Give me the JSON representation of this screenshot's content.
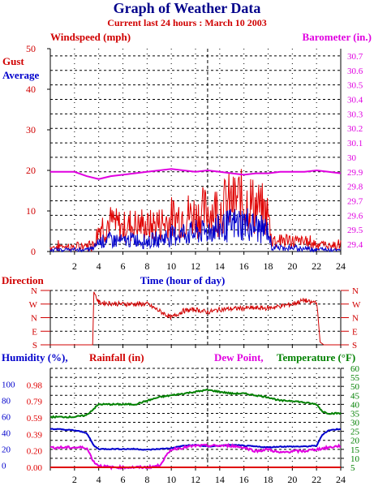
{
  "title": "Graph of Weather Data",
  "subtitle": "Current last 24 hours : March 10 2003",
  "colors": {
    "gust": "#e00000",
    "average": "#0000cc",
    "barometer": "#e000e0",
    "direction": "#d00000",
    "humidity": "#0000cc",
    "rainfall": "#e00000",
    "dewpoint": "#e000e0",
    "temperature": "#008000",
    "grid": "#000000"
  },
  "x_axis": {
    "label": "Time (hour of day)",
    "ticks": [
      "2",
      "4",
      "6",
      "8",
      "10",
      "12",
      "14",
      "16",
      "18",
      "20",
      "22",
      "24"
    ]
  },
  "chart_data": [
    {
      "type": "line",
      "label_left": "Windspeed (mph)",
      "label_right": "Barometer (in.)",
      "legend": [
        "Gust",
        "Average"
      ],
      "ylim_left": [
        0,
        50
      ],
      "yticks_left": [
        "0",
        "10",
        "20",
        "30",
        "40",
        "50"
      ],
      "ylim_right": [
        29.35,
        30.75
      ],
      "yticks_right": [
        "29.4",
        "29.5",
        "29.6",
        "29.7",
        "29.8",
        "29.9",
        "30",
        "30.1",
        "30.2",
        "30.3",
        "30.4",
        "30.5",
        "30.6",
        "30.7"
      ],
      "xlim": [
        0,
        24
      ],
      "series": [
        {
          "name": "Gust",
          "axis": "left",
          "points": [
            [
              0,
              1
            ],
            [
              1,
              1.5
            ],
            [
              2,
              1
            ],
            [
              3,
              1.5
            ],
            [
              3.6,
              2
            ],
            [
              4,
              6
            ],
            [
              5,
              7
            ],
            [
              6,
              6
            ],
            [
              7,
              7
            ],
            [
              8,
              6
            ],
            [
              9,
              7
            ],
            [
              10,
              8
            ],
            [
              11,
              9
            ],
            [
              12,
              9
            ],
            [
              13,
              10
            ],
            [
              14,
              11
            ],
            [
              15,
              12
            ],
            [
              16,
              13
            ],
            [
              17,
              11
            ],
            [
              18,
              9
            ],
            [
              18.3,
              3
            ],
            [
              19,
              3
            ],
            [
              20,
              2.5
            ],
            [
              21,
              2.5
            ],
            [
              22,
              2
            ],
            [
              23,
              1.5
            ],
            [
              24,
              1.5
            ]
          ]
        },
        {
          "name": "Average",
          "axis": "left",
          "points": [
            [
              0,
              0.3
            ],
            [
              1,
              0.5
            ],
            [
              2,
              0.4
            ],
            [
              3,
              0.5
            ],
            [
              3.6,
              0.8
            ],
            [
              4,
              2.5
            ],
            [
              5,
              3
            ],
            [
              6,
              2.5
            ],
            [
              7,
              3
            ],
            [
              8,
              2.5
            ],
            [
              9,
              3
            ],
            [
              10,
              4
            ],
            [
              11,
              4.5
            ],
            [
              12,
              4.5
            ],
            [
              13,
              5
            ],
            [
              14,
              6
            ],
            [
              15,
              6.5
            ],
            [
              16,
              7
            ],
            [
              17,
              6
            ],
            [
              18,
              5
            ],
            [
              18.3,
              1
            ],
            [
              19,
              1
            ],
            [
              20,
              0.8
            ],
            [
              21,
              0.8
            ],
            [
              22,
              0.5
            ],
            [
              23,
              0.5
            ],
            [
              24,
              0.5
            ]
          ]
        },
        {
          "name": "Barometer",
          "axis": "right",
          "points": [
            [
              0,
              29.9
            ],
            [
              2,
              29.9
            ],
            [
              3,
              29.87
            ],
            [
              4,
              29.85
            ],
            [
              5,
              29.87
            ],
            [
              6,
              29.88
            ],
            [
              8,
              29.9
            ],
            [
              9,
              29.91
            ],
            [
              10,
              29.92
            ],
            [
              11,
              29.91
            ],
            [
              12,
              29.9
            ],
            [
              13,
              29.91
            ],
            [
              14,
              29.9
            ],
            [
              15,
              29.89
            ],
            [
              16,
              29.88
            ],
            [
              17,
              29.89
            ],
            [
              18,
              29.89
            ],
            [
              19,
              29.9
            ],
            [
              20,
              29.9
            ],
            [
              21,
              29.9
            ],
            [
              22,
              29.91
            ],
            [
              23,
              29.9
            ],
            [
              24,
              29.89
            ]
          ]
        }
      ]
    },
    {
      "type": "line",
      "label_left": "Direction",
      "yticks_left": [
        "S",
        "E",
        "N",
        "W",
        "N"
      ],
      "yticks_right": [
        "S",
        "E",
        "N",
        "W",
        "N"
      ],
      "ylim": [
        0,
        4
      ],
      "xlim": [
        0,
        24
      ],
      "series": [
        {
          "name": "Direction",
          "points": [
            [
              0,
              0
            ],
            [
              3.5,
              0
            ],
            [
              3.6,
              3.9
            ],
            [
              4,
              3.1
            ],
            [
              6,
              3
            ],
            [
              8,
              3
            ],
            [
              9,
              2.5
            ],
            [
              10,
              2
            ],
            [
              11,
              2.5
            ],
            [
              12,
              2.6
            ],
            [
              13,
              2.4
            ],
            [
              14,
              2.6
            ],
            [
              16,
              2.7
            ],
            [
              18,
              2.7
            ],
            [
              20,
              3
            ],
            [
              21,
              3.3
            ],
            [
              21.5,
              3.1
            ],
            [
              22,
              3.2
            ],
            [
              22.3,
              0.2
            ],
            [
              22.6,
              0
            ],
            [
              24,
              0
            ]
          ]
        }
      ]
    },
    {
      "type": "line",
      "labels": [
        "Humidity (%),",
        "Rainfall (in)",
        "Dew Point,",
        "Temperature (°F)"
      ],
      "ylim_humidity": [
        0,
        100
      ],
      "yticks_humidity": [
        "0",
        "20",
        "40",
        "60",
        "80",
        "100"
      ],
      "ylim_rainfall": [
        0,
        1.18
      ],
      "yticks_rainfall": [
        "0.00",
        "0.20",
        "0.39",
        "0.59",
        "0.79",
        "0.98"
      ],
      "ylim_temperature": [
        5,
        60
      ],
      "yticks_temperature": [
        "5",
        "10",
        "15",
        "20",
        "25",
        "30",
        "35",
        "40",
        "45",
        "50",
        "55",
        "60"
      ],
      "xlim": [
        0,
        24
      ],
      "series": [
        {
          "name": "Temperature",
          "axis": "temperature",
          "points": [
            [
              0,
              33
            ],
            [
              1,
              33
            ],
            [
              2,
              33
            ],
            [
              3,
              34
            ],
            [
              3.5,
              37
            ],
            [
              4,
              40
            ],
            [
              5,
              40
            ],
            [
              6,
              40
            ],
            [
              7,
              40
            ],
            [
              8,
              42
            ],
            [
              9,
              44
            ],
            [
              10,
              45
            ],
            [
              11,
              46
            ],
            [
              12,
              47
            ],
            [
              13,
              48
            ],
            [
              14,
              47
            ],
            [
              15,
              46
            ],
            [
              16,
              46
            ],
            [
              17,
              45
            ],
            [
              18,
              44
            ],
            [
              19,
              42
            ],
            [
              20,
              42
            ],
            [
              21,
              41
            ],
            [
              22,
              40
            ],
            [
              22.5,
              36
            ],
            [
              23,
              35
            ],
            [
              24,
              35
            ]
          ]
        },
        {
          "name": "Humidity",
          "axis": "humidity",
          "points": [
            [
              0,
              45
            ],
            [
              1,
              44
            ],
            [
              2,
              43
            ],
            [
              3,
              40
            ],
            [
              3.6,
              24
            ],
            [
              4,
              20
            ],
            [
              5,
              20
            ],
            [
              6,
              20
            ],
            [
              7,
              20
            ],
            [
              8,
              19
            ],
            [
              9,
              20
            ],
            [
              10,
              21
            ],
            [
              11,
              24
            ],
            [
              12,
              25
            ],
            [
              13,
              23
            ],
            [
              14,
              24
            ],
            [
              15,
              25
            ],
            [
              16,
              24
            ],
            [
              17,
              23
            ],
            [
              18,
              22
            ],
            [
              19,
              23
            ],
            [
              20,
              23
            ],
            [
              21,
              23
            ],
            [
              22,
              24
            ],
            [
              22.5,
              38
            ],
            [
              23,
              43
            ],
            [
              24,
              45
            ]
          ]
        },
        {
          "name": "Dew Point",
          "axis": "temperature",
          "points": [
            [
              0,
              16
            ],
            [
              1,
              16
            ],
            [
              2,
              16
            ],
            [
              3,
              16
            ],
            [
              3.6,
              8
            ],
            [
              4,
              6
            ],
            [
              5,
              5
            ],
            [
              6,
              5
            ],
            [
              7,
              5
            ],
            [
              8,
              5
            ],
            [
              9,
              6
            ],
            [
              10,
              15
            ],
            [
              11,
              16
            ],
            [
              12,
              17
            ],
            [
              13,
              17
            ],
            [
              14,
              17
            ],
            [
              15,
              17
            ],
            [
              16,
              16
            ],
            [
              17,
              14
            ],
            [
              18,
              15
            ],
            [
              19,
              13
            ],
            [
              20,
              14
            ],
            [
              21,
              14
            ],
            [
              22,
              15
            ],
            [
              23,
              16
            ],
            [
              24,
              17
            ]
          ]
        },
        {
          "name": "Rainfall",
          "axis": "rainfall",
          "points": [
            [
              0,
              0
            ],
            [
              24,
              0
            ]
          ]
        }
      ]
    }
  ]
}
